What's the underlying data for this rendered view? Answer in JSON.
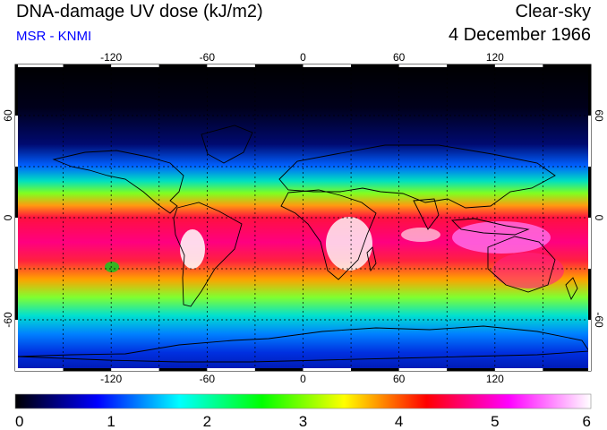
{
  "header": {
    "title": "DNA-damage UV dose (kJ/m2)",
    "source": "MSR - KNMI",
    "condition": "Clear-sky",
    "date": "4 December 1966"
  },
  "map": {
    "projection": "equirectangular",
    "lon_range": [
      -180,
      180
    ],
    "lat_range": [
      -90,
      90
    ],
    "lon_tick_labels": [
      "-120",
      "-60",
      "0",
      "60",
      "120"
    ],
    "lat_tick_labels": [
      "60",
      "0",
      "-60"
    ],
    "grid": true,
    "grid_lon_step": 30,
    "grid_lat_step": 30
  },
  "colorbar": {
    "min": 0,
    "max": 6,
    "tick_labels": [
      "0",
      "1",
      "2",
      "3",
      "4",
      "5",
      "6"
    ],
    "colors": [
      "#000000",
      "#0000ff",
      "#00ffff",
      "#00ff00",
      "#ffff00",
      "#ff0000",
      "#ff00ff",
      "#ffffff"
    ]
  }
}
